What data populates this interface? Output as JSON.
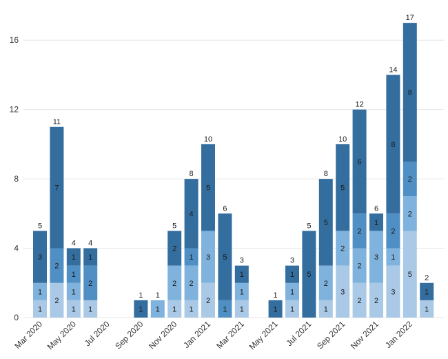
{
  "chart_data": {
    "type": "bar",
    "stacked": true,
    "ylim": [
      0,
      18
    ],
    "yticks": [
      0,
      4,
      8,
      12,
      16
    ],
    "grid": true,
    "legend": "none",
    "categories": [
      "Mar 2020",
      "Apr 2020",
      "May 2020",
      "Jun 2020",
      "Jul 2020",
      "Aug 2020",
      "Sep 2020",
      "Oct 2020",
      "Nov 2020",
      "Dec 2020",
      "Jan 2021",
      "Feb 2021",
      "Mar 2021",
      "Apr 2021",
      "May 2021",
      "Jun 2021",
      "Jul 2021",
      "Aug 2021",
      "Sep 2021",
      "Oct 2021",
      "Nov 2021",
      "Dec 2021",
      "Jan 2022",
      "Feb 2022"
    ],
    "xticklabels": [
      "Mar 2020",
      "",
      "May 2020",
      "",
      "Jul 2020",
      "",
      "Sep 2020",
      "",
      "Nov 2020",
      "",
      "Jan 2021",
      "",
      "Mar 2021",
      "",
      "May 2021",
      "",
      "Jul 2021",
      "",
      "Sep 2021",
      "",
      "Nov 2021",
      "",
      "Jan 2022",
      ""
    ],
    "series": [
      {
        "color": "#a9c9e6",
        "values": [
          1,
          2,
          1,
          1,
          0,
          0,
          0,
          0,
          1,
          1,
          2,
          0,
          1,
          0,
          0,
          1,
          0,
          1,
          3,
          2,
          2,
          3,
          5,
          1
        ]
      },
      {
        "color": "#7fb2dc",
        "values": [
          1,
          0,
          1,
          0,
          0,
          0,
          0,
          1,
          2,
          2,
          3,
          0,
          1,
          0,
          0,
          1,
          0,
          2,
          2,
          2,
          3,
          1,
          2,
          0
        ]
      },
      {
        "color": "#4f8fc4",
        "values": [
          0,
          2,
          1,
          2,
          0,
          0,
          0,
          0,
          0,
          1,
          0,
          1,
          0,
          0,
          0,
          0,
          0,
          0,
          0,
          2,
          0,
          2,
          2,
          0
        ]
      },
      {
        "color": "#346e9f",
        "values": [
          3,
          7,
          1,
          1,
          0,
          0,
          1,
          0,
          2,
          4,
          5,
          5,
          1,
          0,
          1,
          1,
          5,
          5,
          5,
          6,
          1,
          8,
          8,
          1
        ]
      }
    ],
    "totals": [
      5,
      11,
      4,
      4,
      0,
      0,
      1,
      1,
      5,
      8,
      10,
      6,
      3,
      0,
      1,
      3,
      5,
      8,
      10,
      12,
      6,
      14,
      17,
      2
    ]
  }
}
